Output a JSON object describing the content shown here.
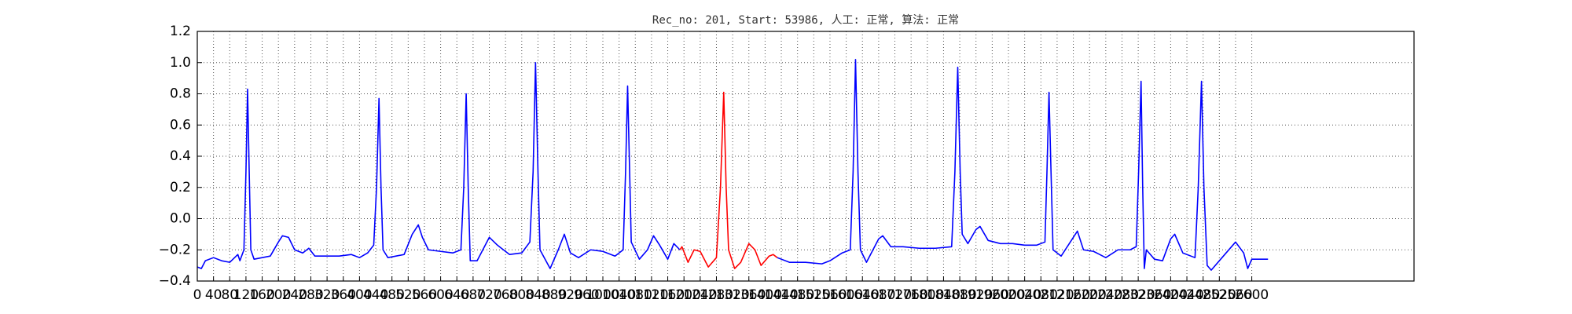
{
  "chart_data": {
    "type": "line",
    "title": "Rec_no: 201, Start: 53986, 人工: 正常, 算法: 正常",
    "xlim": [
      0,
      3000
    ],
    "xticks": [
      0,
      40,
      80,
      120,
      160,
      200,
      240,
      280,
      320,
      360,
      400,
      440,
      480,
      520,
      560,
      600,
      640,
      680,
      720,
      760,
      800,
      840,
      880,
      920,
      960,
      1000,
      1040,
      1080,
      1120,
      1160,
      1200,
      1240,
      1280,
      1320,
      1360,
      1400,
      1440,
      1480,
      1520,
      1560,
      1600,
      1640,
      1680,
      1720,
      1760,
      1800,
      1840,
      1880,
      1920,
      1960,
      2000,
      2040,
      2080,
      2120,
      2160,
      2200,
      2240,
      2280,
      2320,
      2360,
      2400,
      2440,
      2480,
      2520,
      2560,
      2600
    ],
    "ylim": [
      -0.4,
      1.2
    ],
    "yticks": [
      {
        "value": -0.4,
        "label": "−0.4"
      },
      {
        "value": -0.2,
        "label": "−0.2"
      },
      {
        "value": 0,
        "label": "0.0"
      },
      0.2,
      0.4,
      0.6,
      0.8,
      {
        "value": 1,
        "label": "1.0"
      },
      1.2
    ],
    "grid": true,
    "series": [
      {
        "color": "#0000ff",
        "x": [
          0,
          10,
          20,
          40,
          60,
          80,
          100,
          105,
          115,
          120,
          124,
          128,
          132,
          140,
          160,
          180,
          200,
          210,
          225,
          240,
          260,
          275,
          290,
          320,
          350,
          380,
          400,
          420,
          435,
          442,
          448,
          453,
          458,
          470,
          490,
          510,
          530,
          545,
          555,
          570,
          600,
          630,
          650,
          657,
          663,
          668,
          673,
          690,
          720,
          740,
          770,
          800,
          820,
          828,
          834,
          840,
          845,
          870,
          890,
          905,
          920,
          940,
          970,
          1000,
          1030,
          1050,
          1056,
          1061,
          1066,
          1070,
          1090,
          1110,
          1125,
          1140,
          1160,
          1175,
          1190
        ],
        "values": [
          -0.31,
          -0.32,
          -0.27,
          -0.25,
          -0.27,
          -0.28,
          -0.23,
          -0.27,
          -0.2,
          0.3,
          0.83,
          0.3,
          -0.2,
          -0.26,
          -0.25,
          -0.24,
          -0.15,
          -0.11,
          -0.12,
          -0.2,
          -0.22,
          -0.19,
          -0.24,
          -0.24,
          -0.24,
          -0.23,
          -0.25,
          -0.22,
          -0.17,
          0.2,
          0.77,
          0.2,
          -0.2,
          -0.25,
          -0.24,
          -0.23,
          -0.1,
          -0.04,
          -0.12,
          -0.2,
          -0.21,
          -0.22,
          -0.2,
          0.2,
          0.8,
          0.2,
          -0.27,
          -0.27,
          -0.12,
          -0.17,
          -0.23,
          -0.22,
          -0.15,
          0.3,
          1.0,
          0.3,
          -0.2,
          -0.32,
          -0.2,
          -0.1,
          -0.22,
          -0.25,
          -0.2,
          -0.21,
          -0.24,
          -0.2,
          0.3,
          0.85,
          0.3,
          -0.15,
          -0.26,
          -0.2,
          -0.11,
          -0.17,
          -0.26,
          -0.16,
          -0.2
        ]
      },
      {
        "color": "#ff0000",
        "x": [
          1190,
          1195,
          1210,
          1225,
          1240,
          1260,
          1280,
          1290,
          1298,
          1304,
          1310,
          1325,
          1340,
          1360,
          1375,
          1390,
          1410,
          1420,
          1430
        ],
        "values": [
          -0.2,
          -0.18,
          -0.28,
          -0.2,
          -0.21,
          -0.31,
          -0.25,
          0.2,
          0.81,
          0.2,
          -0.2,
          -0.32,
          -0.28,
          -0.16,
          -0.2,
          -0.3,
          -0.24,
          -0.23,
          -0.25
        ]
      },
      {
        "color": "#0000ff",
        "x": [
          1430,
          1460,
          1500,
          1540,
          1560,
          1590,
          1610,
          1617,
          1623,
          1629,
          1635,
          1650,
          1680,
          1690,
          1710,
          1740,
          1780,
          1820,
          1860,
          1868,
          1875,
          1881,
          1886,
          1900,
          1920,
          1930,
          1950,
          1980,
          2010,
          2040,
          2070,
          2090,
          2095,
          2100,
          2105,
          2110,
          2130,
          2150,
          2170,
          2185,
          2210,
          2240,
          2270,
          2300,
          2315,
          2321,
          2327,
          2331,
          2335,
          2340,
          2360,
          2380,
          2400,
          2410,
          2430,
          2460,
          2468,
          2476,
          2482,
          2490,
          2500,
          2530,
          2560,
          2580,
          2590,
          2600,
          2640
        ],
        "values": [
          -0.25,
          -0.28,
          -0.28,
          -0.29,
          -0.27,
          -0.22,
          -0.2,
          0.3,
          1.02,
          0.3,
          -0.2,
          -0.28,
          -0.13,
          -0.11,
          -0.18,
          -0.18,
          -0.19,
          -0.19,
          -0.18,
          0.3,
          0.97,
          0.3,
          -0.1,
          -0.16,
          -0.07,
          -0.05,
          -0.14,
          -0.16,
          -0.16,
          -0.17,
          -0.17,
          -0.15,
          0.3,
          0.81,
          0.3,
          -0.2,
          -0.24,
          -0.16,
          -0.08,
          -0.2,
          -0.21,
          -0.25,
          -0.2,
          -0.2,
          -0.18,
          0.3,
          0.88,
          0.2,
          -0.32,
          -0.2,
          -0.26,
          -0.27,
          -0.13,
          -0.1,
          -0.22,
          -0.25,
          0.2,
          0.88,
          0.2,
          -0.3,
          -0.33,
          -0.24,
          -0.15,
          -0.22,
          -0.32,
          -0.26,
          -0.26
        ]
      }
    ]
  }
}
